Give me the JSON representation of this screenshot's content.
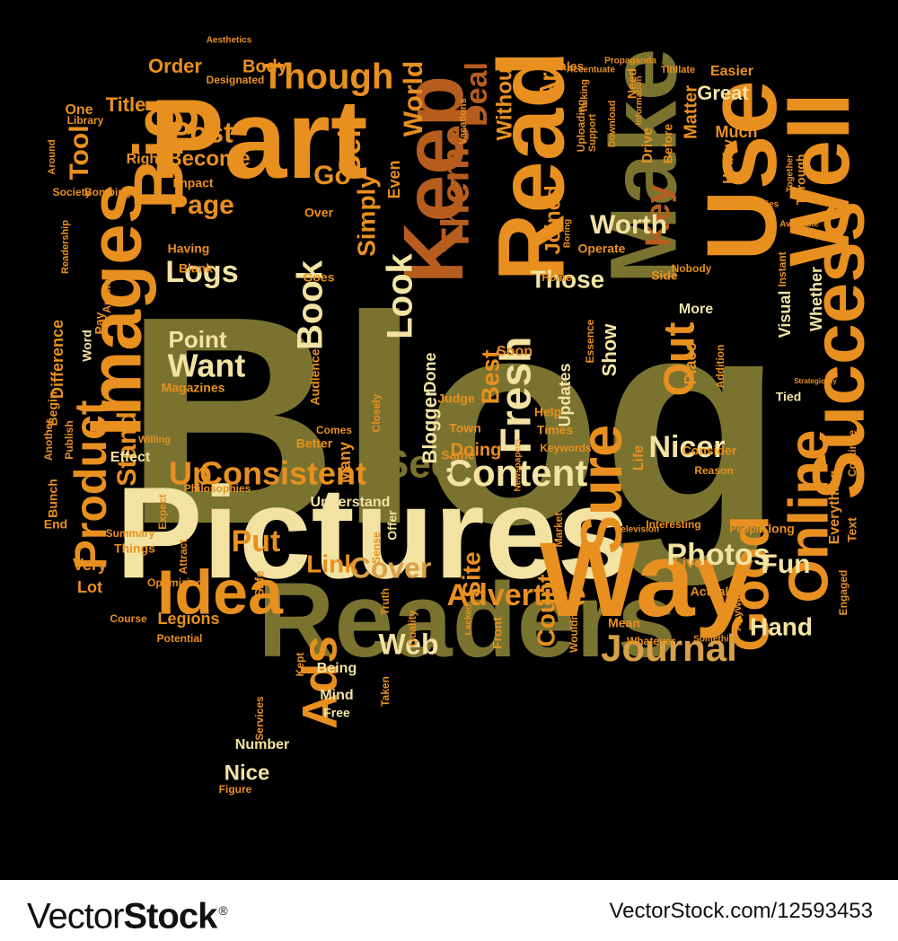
{
  "palette": {
    "background": "#000000",
    "olive": "#7a7330",
    "cream": "#f3e3a3",
    "orange": "#e8901f",
    "rust": "#b65d1e",
    "gold": "#d9a04a",
    "pale": "#f6ecc4"
  },
  "cloud": {
    "shape": "speech-bubble",
    "words": [
      {
        "text": "Blog"
      },
      {
        "text": "Pictures"
      },
      {
        "text": "Readers"
      },
      {
        "text": "Way"
      },
      {
        "text": "Part"
      },
      {
        "text": "Use"
      },
      {
        "text": "Well"
      },
      {
        "text": "Keep"
      },
      {
        "text": "Read"
      },
      {
        "text": "Make"
      },
      {
        "text": "Success"
      },
      {
        "text": "Images"
      },
      {
        "text": "Big"
      },
      {
        "text": "Sure"
      },
      {
        "text": "Idea"
      },
      {
        "text": "Online"
      },
      {
        "text": "Good"
      },
      {
        "text": "Fresh"
      },
      {
        "text": "Ads"
      },
      {
        "text": "Product"
      },
      {
        "text": "Content"
      },
      {
        "text": "Journal"
      },
      {
        "text": "Consistent"
      },
      {
        "text": "See"
      },
      {
        "text": "Though"
      },
      {
        "text": "Theme"
      },
      {
        "text": "Photos"
      },
      {
        "text": "Advertise"
      },
      {
        "text": "Out"
      },
      {
        "text": "Look"
      },
      {
        "text": "Book"
      },
      {
        "text": "Logs"
      },
      {
        "text": "Want"
      },
      {
        "text": "Point"
      },
      {
        "text": "Stand"
      },
      {
        "text": "Cover"
      },
      {
        "text": "Link"
      },
      {
        "text": "Put"
      },
      {
        "text": "Up"
      },
      {
        "text": "Web"
      },
      {
        "text": "Key"
      },
      {
        "text": "Sell"
      },
      {
        "text": "Deal"
      },
      {
        "text": "World"
      },
      {
        "text": "Post"
      },
      {
        "text": "Page"
      },
      {
        "text": "Tool"
      },
      {
        "text": "Go"
      },
      {
        "text": "Best"
      },
      {
        "text": "Nicer"
      },
      {
        "text": "Worth"
      },
      {
        "text": "Those"
      },
      {
        "text": "Count"
      },
      {
        "text": "Fun"
      },
      {
        "text": "Hand"
      },
      {
        "text": "Site"
      },
      {
        "text": "Simply"
      },
      {
        "text": "Become"
      },
      {
        "text": "Order"
      },
      {
        "text": "Title"
      },
      {
        "text": "Body"
      },
      {
        "text": "Great"
      },
      {
        "text": "Matter"
      },
      {
        "text": "Without"
      },
      {
        "text": "Joined"
      },
      {
        "text": "Even"
      },
      {
        "text": "Ar"
      },
      {
        "text": "Drive"
      },
      {
        "text": "Right"
      },
      {
        "text": "Designated"
      },
      {
        "text": "Aesthetics"
      },
      {
        "text": "Accentuate"
      },
      {
        "text": "Propaganda"
      },
      {
        "text": "Titillate"
      },
      {
        "text": "Easier"
      },
      {
        "text": "Sales"
      },
      {
        "text": "Much"
      },
      {
        "text": "Need"
      },
      {
        "text": "One"
      },
      {
        "text": "Information"
      },
      {
        "text": "Impact"
      },
      {
        "text": "Vacations"
      },
      {
        "text": "Talking"
      },
      {
        "text": "Support"
      },
      {
        "text": "Download"
      },
      {
        "text": "Uploading"
      },
      {
        "text": "Library"
      },
      {
        "text": "Bombing"
      },
      {
        "text": "Around"
      },
      {
        "text": "Society"
      },
      {
        "text": "Before"
      },
      {
        "text": "Hobby"
      },
      {
        "text": "Royalties"
      },
      {
        "text": "Together"
      },
      {
        "text": "Available"
      },
      {
        "text": "Through"
      },
      {
        "text": "Having"
      },
      {
        "text": "Over"
      },
      {
        "text": "Readership"
      },
      {
        "text": "Blank"
      },
      {
        "text": "Goes"
      },
      {
        "text": "Article"
      },
      {
        "text": "Home"
      },
      {
        "text": "Boring"
      },
      {
        "text": "Operate"
      },
      {
        "text": "Nobody"
      },
      {
        "text": "Instant"
      },
      {
        "text": "Side"
      },
      {
        "text": "Whether"
      },
      {
        "text": "Visual"
      },
      {
        "text": "Essence"
      },
      {
        "text": "More"
      },
      {
        "text": "Show"
      },
      {
        "text": "Difference"
      },
      {
        "text": "Pay"
      },
      {
        "text": "Word"
      },
      {
        "text": "Audience"
      },
      {
        "text": "Done"
      },
      {
        "text": "Updates"
      },
      {
        "text": "Soon"
      },
      {
        "text": "Place"
      },
      {
        "text": "Addition"
      },
      {
        "text": "Strategically"
      },
      {
        "text": "Tied"
      },
      {
        "text": "Magazines"
      },
      {
        "text": "Begin"
      },
      {
        "text": "Another"
      },
      {
        "text": "Publish"
      },
      {
        "text": "Blogger"
      },
      {
        "text": "Judge"
      },
      {
        "text": "Same"
      },
      {
        "text": "Town"
      },
      {
        "text": "Doing"
      },
      {
        "text": "Many"
      },
      {
        "text": "Comes"
      },
      {
        "text": "Closely"
      },
      {
        "text": "Better"
      },
      {
        "text": "Philosophies"
      },
      {
        "text": "Willing"
      },
      {
        "text": "Effect"
      },
      {
        "text": "Bunch"
      },
      {
        "text": "Expect"
      },
      {
        "text": "End"
      },
      {
        "text": "Summary"
      },
      {
        "text": "Attract"
      },
      {
        "text": "Things"
      },
      {
        "text": "Understand"
      },
      {
        "text": "Offer"
      },
      {
        "text": "Sense"
      },
      {
        "text": "Help"
      },
      {
        "text": "Times"
      },
      {
        "text": "Keywords"
      },
      {
        "text": "Life"
      },
      {
        "text": "Consider"
      },
      {
        "text": "Reason"
      },
      {
        "text": "Continue"
      },
      {
        "text": "Everything"
      },
      {
        "text": "Text"
      },
      {
        "text": "Along"
      },
      {
        "text": "People"
      },
      {
        "text": "Newspapers"
      },
      {
        "text": "Market"
      },
      {
        "text": "Interesting"
      },
      {
        "text": "Television"
      },
      {
        "text": "Live"
      },
      {
        "text": "Actual"
      },
      {
        "text": "Anyway"
      },
      {
        "text": "Engaged"
      },
      {
        "text": "Very"
      },
      {
        "text": "Lot"
      },
      {
        "text": "Optimizing"
      },
      {
        "text": "Safe"
      },
      {
        "text": "Truth"
      },
      {
        "text": "Quality"
      },
      {
        "text": "Lacked"
      },
      {
        "text": "Front"
      },
      {
        "text": "Mean"
      },
      {
        "text": "Whatever"
      },
      {
        "text": "Wouldn"
      },
      {
        "text": "Something"
      },
      {
        "text": "Legions"
      },
      {
        "text": "Potential"
      },
      {
        "text": "Course"
      },
      {
        "text": "Kept"
      },
      {
        "text": "Being"
      },
      {
        "text": "Mind"
      },
      {
        "text": "Free"
      },
      {
        "text": "Taken"
      },
      {
        "text": "Services"
      },
      {
        "text": "Number"
      },
      {
        "text": "Nice"
      },
      {
        "text": "Figure"
      }
    ]
  },
  "watermark": {
    "brand_vector": "Vector",
    "brand_stock": "Stock",
    "trademark": "®",
    "image_id": "VectorStock.com/12593453"
  }
}
